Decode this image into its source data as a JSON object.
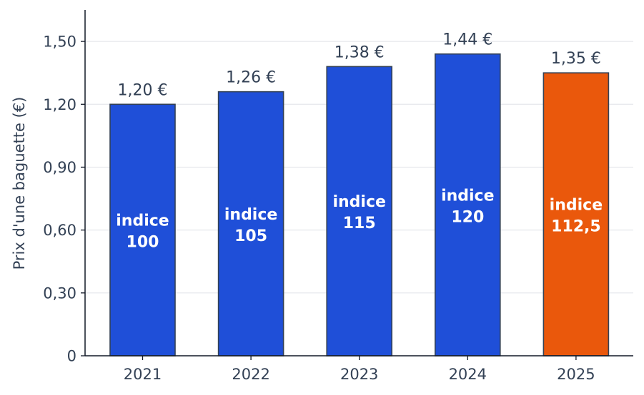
{
  "chart_data": {
    "type": "bar",
    "categories": [
      "2021",
      "2022",
      "2023",
      "2024",
      "2025"
    ],
    "values": [
      1.2,
      1.26,
      1.38,
      1.44,
      1.35
    ],
    "value_labels": [
      "1,20 €",
      "1,26 €",
      "1,38 €",
      "1,44 €",
      "1,35 €"
    ],
    "inner_labels": [
      [
        "indice",
        "100"
      ],
      [
        "indice",
        "105"
      ],
      [
        "indice",
        "115"
      ],
      [
        "indice",
        "120"
      ],
      [
        "indice",
        "112,5"
      ]
    ],
    "bar_colors": [
      "#1f4fd8",
      "#1f4fd8",
      "#1f4fd8",
      "#1f4fd8",
      "#ea580c"
    ],
    "edge_color": "#334155",
    "title": "",
    "xlabel": "",
    "ylabel": "Prix d'une baguette (€)",
    "ylim": [
      0,
      1.65
    ],
    "yticks": [
      0,
      0.3,
      0.6,
      0.9,
      1.2,
      1.5
    ],
    "ytick_labels": [
      "0",
      "0,30",
      "0,60",
      "0,90",
      "1,20",
      "1,50"
    ],
    "grid": "horizontal",
    "legend": "none"
  }
}
